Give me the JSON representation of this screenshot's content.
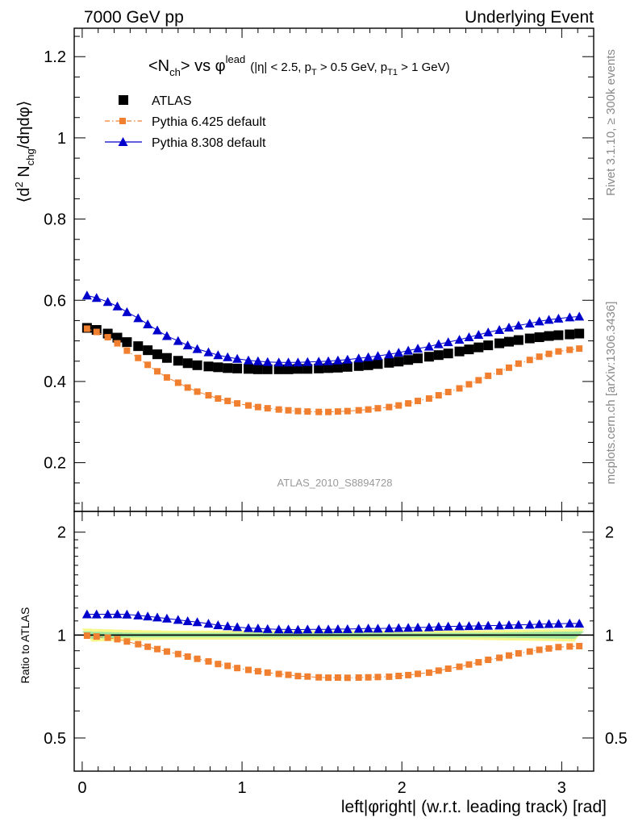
{
  "header": {
    "left": "7000 GeV pp",
    "right": "Underlying Event"
  },
  "title": {
    "main_prefix": "<N",
    "main_sub": "ch",
    "main_mid": "> vs ",
    "main_phi": "φ",
    "main_sup": "lead",
    "cuts_1": "(|η| < 2.5, p",
    "cuts_sub1": "T",
    "cuts_2": " > 0.5 GeV, p",
    "cuts_sub2": "T1",
    "cuts_3": " > 1 GeV)"
  },
  "side_labels": {
    "rivet": "Rivet 3.1.10, ≥ 300k events",
    "mcplots": "mcplots.cern.ch [arXiv:1306.3436]"
  },
  "analysis_tag": "ATLAS_2010_S8894728",
  "ratio_ylabel": "Ratio to ATLAS",
  "chart_data": {
    "type": "scatter",
    "title": "<Nch> vs φlead (|η| < 2.5, pT > 0.5 GeV, pT1 > 1 GeV)",
    "xlabel": "left|φright| (w.r.t. leading track) [rad]",
    "ylabel_main": "⟨d² Nchg/dηdφ⟩",
    "ylabel_ratio": "Ratio to ATLAS",
    "xlim": [
      -0.05,
      3.2
    ],
    "ylim_main": [
      0.08,
      1.27
    ],
    "ylim_ratio": [
      0.4,
      2.3
    ],
    "xticks": [
      0,
      1,
      2,
      3
    ],
    "yticks_main": [
      0.2,
      0.4,
      0.6,
      0.8,
      1,
      1.2
    ],
    "yticks_ratio": [
      0.5,
      1,
      2
    ],
    "legend": "top-left",
    "x": [
      0.03,
      0.09,
      0.16,
      0.22,
      0.28,
      0.35,
      0.41,
      0.47,
      0.53,
      0.6,
      0.66,
      0.72,
      0.79,
      0.85,
      0.91,
      0.97,
      1.04,
      1.1,
      1.16,
      1.23,
      1.29,
      1.35,
      1.41,
      1.48,
      1.54,
      1.6,
      1.66,
      1.73,
      1.79,
      1.85,
      1.92,
      1.98,
      2.04,
      2.1,
      2.17,
      2.23,
      2.29,
      2.36,
      2.42,
      2.48,
      2.54,
      2.61,
      2.67,
      2.73,
      2.8,
      2.86,
      2.92,
      2.98,
      3.05,
      3.11
    ],
    "series": [
      {
        "name": "ATLAS",
        "color": "#000000",
        "marker": "square",
        "values": [
          0.532,
          0.527,
          0.518,
          0.508,
          0.497,
          0.487,
          0.477,
          0.467,
          0.458,
          0.451,
          0.445,
          0.44,
          0.437,
          0.435,
          0.433,
          0.432,
          0.431,
          0.43,
          0.43,
          0.43,
          0.43,
          0.431,
          0.431,
          0.432,
          0.433,
          0.434,
          0.436,
          0.438,
          0.44,
          0.443,
          0.446,
          0.449,
          0.453,
          0.457,
          0.461,
          0.465,
          0.469,
          0.474,
          0.479,
          0.484,
          0.489,
          0.494,
          0.498,
          0.502,
          0.506,
          0.509,
          0.512,
          0.514,
          0.516,
          0.518
        ]
      },
      {
        "name": "Pythia 6.425 default",
        "color": "#f08030",
        "marker": "square-dashdot",
        "values": [
          0.53,
          0.522,
          0.509,
          0.494,
          0.476,
          0.458,
          0.441,
          0.425,
          0.41,
          0.397,
          0.385,
          0.375,
          0.366,
          0.358,
          0.352,
          0.346,
          0.341,
          0.337,
          0.334,
          0.331,
          0.329,
          0.327,
          0.326,
          0.325,
          0.325,
          0.326,
          0.327,
          0.329,
          0.331,
          0.334,
          0.337,
          0.341,
          0.346,
          0.352,
          0.358,
          0.366,
          0.374,
          0.383,
          0.393,
          0.403,
          0.414,
          0.424,
          0.434,
          0.444,
          0.453,
          0.461,
          0.468,
          0.474,
          0.478,
          0.481
        ]
      },
      {
        "name": "Pythia 8.308 default",
        "color": "#0000cc",
        "marker": "triangle",
        "values": [
          0.612,
          0.606,
          0.596,
          0.585,
          0.571,
          0.556,
          0.541,
          0.526,
          0.512,
          0.5,
          0.489,
          0.48,
          0.472,
          0.465,
          0.46,
          0.456,
          0.452,
          0.45,
          0.448,
          0.447,
          0.447,
          0.447,
          0.448,
          0.449,
          0.45,
          0.452,
          0.454,
          0.457,
          0.46,
          0.463,
          0.467,
          0.471,
          0.476,
          0.481,
          0.486,
          0.492,
          0.497,
          0.503,
          0.509,
          0.515,
          0.521,
          0.527,
          0.533,
          0.538,
          0.543,
          0.548,
          0.552,
          0.555,
          0.558,
          0.56
        ]
      }
    ],
    "ratio_band": {
      "inner_color": "#9ee59e",
      "outer_color": "#f6f68a",
      "inner_half_width": [
        0.025,
        0.022,
        0.02,
        0.018,
        0.016,
        0.015,
        0.015,
        0.015,
        0.015,
        0.015,
        0.015,
        0.015,
        0.015,
        0.015,
        0.015,
        0.015,
        0.015,
        0.015,
        0.015,
        0.015,
        0.015,
        0.015,
        0.015,
        0.015,
        0.015,
        0.015,
        0.015,
        0.015,
        0.015,
        0.015,
        0.015,
        0.015,
        0.015,
        0.015,
        0.015,
        0.015,
        0.015,
        0.015,
        0.015,
        0.015,
        0.016,
        0.017,
        0.018,
        0.019,
        0.02,
        0.021,
        0.022,
        0.023,
        0.024,
        0.025
      ],
      "outer_half_width": [
        0.045,
        0.042,
        0.04,
        0.038,
        0.036,
        0.034,
        0.033,
        0.032,
        0.031,
        0.03,
        0.03,
        0.03,
        0.03,
        0.03,
        0.03,
        0.03,
        0.03,
        0.03,
        0.03,
        0.03,
        0.03,
        0.03,
        0.03,
        0.03,
        0.03,
        0.03,
        0.03,
        0.03,
        0.03,
        0.03,
        0.03,
        0.03,
        0.03,
        0.03,
        0.03,
        0.03,
        0.03,
        0.03,
        0.031,
        0.032,
        0.033,
        0.034,
        0.035,
        0.036,
        0.037,
        0.038,
        0.039,
        0.04,
        0.042,
        0.045
      ]
    }
  }
}
